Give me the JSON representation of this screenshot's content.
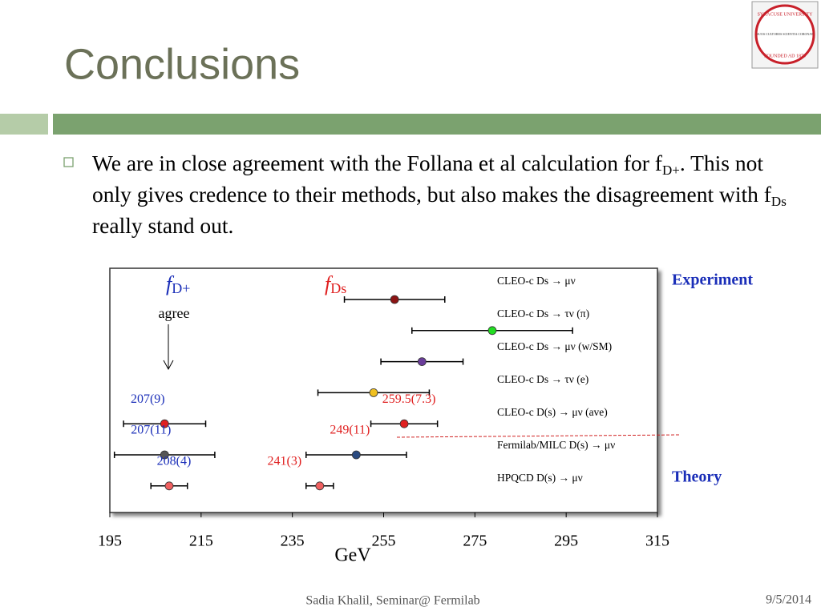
{
  "slide": {
    "title": "Conclusions",
    "bullet": [
      "We are in close agreement with the Follana et al calculation for f",
      "D+",
      ". This not only gives credence to their methods, but also makes the disagreement with f",
      "Ds",
      " really stand out."
    ],
    "footer": "Sadia Khalil, Seminar@ Fermilab",
    "date": "9/5/2014",
    "logo": [
      "SYRACUSE UNIVERSITY",
      "SUOS CULTORES SCIENTIA CORONAT",
      "FOUNDED AD 1870"
    ]
  },
  "chart_data": {
    "type": "errorbar",
    "categories": [
      "CLEO-c  Ds → μν",
      "CLEO-c  Ds → τν (π)",
      "CLEO-c  Ds → μν (w/SM)",
      "CLEO-c  Ds → τν (e)",
      "CLEO-c  D(s) → μν (ave)",
      "Fermilab/MILC D(s) → μν",
      "HPQCD  D(s) → μν"
    ],
    "series": [
      {
        "colors": [
          "#8b1414",
          "#22dd22",
          "#6a3d9a",
          "#f0c020",
          "#e02020",
          "#2a4a80",
          "#f06060"
        ],
        "values": [
          257.4,
          278.8,
          263.4,
          252.8,
          259.5,
          249,
          241
        ],
        "errors": [
          11,
          17.6,
          9,
          12.2,
          7.3,
          11,
          3
        ],
        "value_labels": [
          null,
          null,
          null,
          null,
          "259.5(7.3)",
          "249(11)",
          "241(3)"
        ]
      },
      {
        "colors": [
          null,
          null,
          null,
          null,
          "#e02020",
          "#555555",
          "#f06060"
        ],
        "values": [
          null,
          null,
          null,
          null,
          207,
          207,
          208
        ],
        "errors": [
          null,
          null,
          null,
          null,
          9,
          11,
          4
        ],
        "value_labels": [
          null,
          null,
          null,
          null,
          "207(9)",
          "207(11)",
          "208(4)"
        ]
      }
    ],
    "group_labels": [
      {
        "symbol": "f",
        "subscript": "D+"
      },
      {
        "symbol": "f",
        "subscript": "Ds"
      }
    ],
    "agree": "agree",
    "experiment": "Experiment",
    "theory": "Theory",
    "xlabel": "GeV",
    "xlim": [
      195,
      315
    ],
    "xticks": [
      195,
      215,
      235,
      255,
      275,
      295,
      315
    ]
  }
}
